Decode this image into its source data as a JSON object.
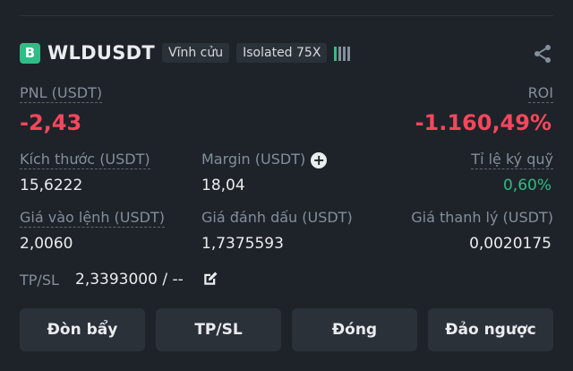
{
  "position": {
    "side_badge": "B",
    "symbol": "WLDUSDT",
    "contract_type": "Vĩnh cửu",
    "margin_mode": "Isolated 75X",
    "leverage_indicator": {
      "active_bars": 1,
      "total_bars": 4
    },
    "share_icon": "share-icon"
  },
  "pnl": {
    "label": "PNL (USDT)",
    "value": "-2,43"
  },
  "roi": {
    "label": "ROI",
    "value": "-1.160,49%"
  },
  "size": {
    "label": "Kích thước (USDT)",
    "value": "15,6222"
  },
  "margin": {
    "label": "Margin (USDT)",
    "value": "18,04",
    "add_icon": "plus-circle-icon"
  },
  "margin_ratio": {
    "label": "Tỉ lệ ký quỹ",
    "value": "0,60%"
  },
  "entry_price": {
    "label": "Giá vào lệnh (USDT)",
    "value": "2,0060"
  },
  "mark_price": {
    "label": "Giá đánh dấu (USDT)",
    "value": "1,7375593"
  },
  "liq_price": {
    "label": "Giá thanh lý (USDT)",
    "value": "0,0020175"
  },
  "tpsl": {
    "label": "TP/SL",
    "value": "2,3393000 / --",
    "edit_icon": "edit-icon"
  },
  "buttons": {
    "leverage": "Đòn bẩy",
    "tpsl": "TP/SL",
    "close": "Đóng",
    "reverse": "Đảo ngược"
  },
  "colors": {
    "background": "#1e2329",
    "buy_green": "#2ebd85",
    "loss_red": "#f6465d",
    "muted": "#848e9c",
    "button_bg": "#2b3139"
  }
}
